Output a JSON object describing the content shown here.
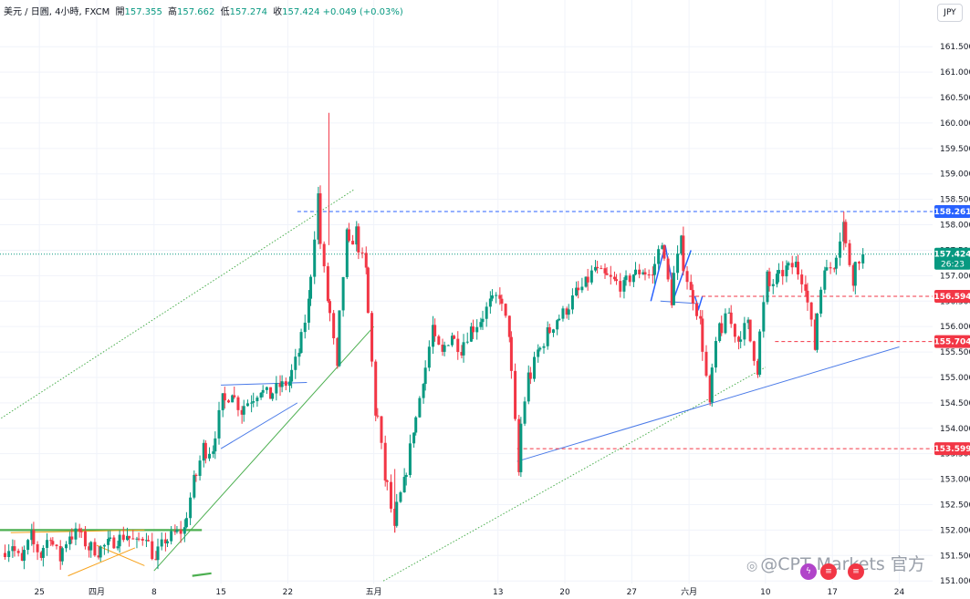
{
  "header": {
    "symbol": "美元 / 日圓, 4小時, FXCM",
    "open_label": "開",
    "open": "157.355",
    "high_label": "高",
    "high": "157.662",
    "low_label": "低",
    "low": "157.274",
    "close_label": "收",
    "close": "157.424",
    "change": "+0.049 (+0.03%)"
  },
  "currency_button": "JPY",
  "watermark": "@CPT Markets 官方",
  "colors": {
    "up": "#089981",
    "down": "#f23645",
    "price_line": "#089981",
    "resistance": "#2962ff",
    "trendline": "#4a7ae8",
    "channel": "#4caf50",
    "range": "#f7a21b",
    "support_red": "#f23645"
  },
  "chart_data": {
    "type": "candlestick",
    "interval": "4h",
    "ylim": [
      151.0,
      162.0
    ],
    "y_ticks": [
      "161.500",
      "161.000",
      "160.500",
      "160.000",
      "159.500",
      "159.000",
      "158.500",
      "158.000",
      "157.500",
      "157.000",
      "156.500",
      "156.000",
      "155.500",
      "155.000",
      "154.500",
      "154.000",
      "153.500",
      "153.000",
      "152.500",
      "152.000",
      "151.500",
      "151.000"
    ],
    "x_ticks": [
      {
        "label": "25",
        "pos": -6
      },
      {
        "label": "四月",
        "pos": 0
      },
      {
        "label": "8",
        "pos": 6
      },
      {
        "label": "15",
        "pos": 13
      },
      {
        "label": "22",
        "pos": 20
      },
      {
        "label": "五月",
        "pos": 29
      },
      {
        "label": "13",
        "pos": 42
      },
      {
        "label": "20",
        "pos": 49
      },
      {
        "label": "27",
        "pos": 56
      },
      {
        "label": "六月",
        "pos": 62
      },
      {
        "label": "10",
        "pos": 70
      },
      {
        "label": "17",
        "pos": 77
      },
      {
        "label": "24",
        "pos": 84
      }
    ],
    "current_price": {
      "value": "157.424",
      "countdown": "26:23"
    },
    "levels": [
      {
        "value": "158.261",
        "style": "dashed",
        "color": "#2962ff",
        "from_pos": 21
      },
      {
        "value": "156.594",
        "style": "dashed",
        "color": "#f23645",
        "from_pos": 62
      },
      {
        "value": "155.704",
        "style": "dashed",
        "color": "#f23645",
        "from_pos": 71
      },
      {
        "value": "153.599",
        "style": "dashed",
        "color": "#f23645",
        "from_pos": 44
      }
    ],
    "anchors": [
      [
        -10.0,
        151.55
      ],
      [
        -9.0,
        151.7
      ],
      [
        -8.0,
        151.4
      ],
      [
        -7.0,
        151.8
      ],
      [
        -6.0,
        151.55
      ],
      [
        -5.0,
        151.85
      ],
      [
        -4.0,
        151.5
      ],
      [
        -3.0,
        151.85
      ],
      [
        -2.0,
        151.95
      ],
      [
        -1.0,
        151.7
      ],
      [
        0.0,
        151.6
      ],
      [
        1.0,
        151.7
      ],
      [
        2.0,
        151.8
      ],
      [
        3.0,
        151.9
      ],
      [
        4.0,
        151.75
      ],
      [
        5.0,
        151.9
      ],
      [
        6.0,
        151.45
      ],
      [
        7.0,
        151.75
      ],
      [
        8.0,
        151.9
      ],
      [
        9.0,
        152.0
      ],
      [
        10.0,
        152.8
      ],
      [
        11.0,
        153.5
      ],
      [
        12.0,
        153.6
      ],
      [
        13.0,
        154.4
      ],
      [
        14.0,
        154.7
      ],
      [
        15.0,
        154.4
      ],
      [
        16.0,
        154.55
      ],
      [
        17.0,
        154.75
      ],
      [
        18.0,
        154.65
      ],
      [
        19.0,
        154.8
      ],
      [
        20.0,
        154.9
      ],
      [
        21.0,
        155.4
      ],
      [
        22.0,
        156.3
      ],
      [
        23.0,
        158.2
      ],
      [
        24.0,
        156.8
      ],
      [
        25.0,
        155.4
      ],
      [
        26.0,
        157.4
      ],
      [
        27.0,
        157.8
      ],
      [
        28.0,
        157.2
      ],
      [
        29.0,
        154.8
      ],
      [
        30.0,
        153.3
      ],
      [
        31.0,
        152.2
      ],
      [
        32.0,
        152.8
      ],
      [
        33.0,
        153.8
      ],
      [
        34.0,
        154.8
      ],
      [
        35.0,
        155.8
      ],
      [
        36.0,
        155.5
      ],
      [
        37.0,
        155.8
      ],
      [
        38.0,
        155.6
      ],
      [
        39.0,
        155.9
      ],
      [
        40.0,
        156.1
      ],
      [
        41.0,
        156.4
      ],
      [
        42.0,
        156.6
      ],
      [
        43.0,
        156.0
      ],
      [
        44.0,
        153.6
      ],
      [
        45.0,
        154.8
      ],
      [
        46.0,
        155.4
      ],
      [
        47.0,
        155.8
      ],
      [
        48.0,
        156.1
      ],
      [
        49.0,
        156.3
      ],
      [
        50.0,
        156.6
      ],
      [
        51.0,
        156.8
      ],
      [
        52.0,
        157.1
      ],
      [
        53.0,
        157.0
      ],
      [
        54.0,
        156.9
      ],
      [
        55.0,
        156.8
      ],
      [
        56.0,
        157.0
      ],
      [
        57.0,
        157.1
      ],
      [
        58.0,
        157.0
      ],
      [
        59.0,
        157.6
      ],
      [
        60.0,
        156.7
      ],
      [
        61.0,
        157.5
      ],
      [
        62.0,
        156.8
      ],
      [
        63.0,
        156.2
      ],
      [
        64.0,
        154.7
      ],
      [
        65.0,
        155.8
      ],
      [
        66.0,
        156.2
      ],
      [
        67.0,
        155.8
      ],
      [
        68.0,
        156.0
      ],
      [
        69.0,
        155.3
      ],
      [
        70.0,
        156.7
      ],
      [
        71.0,
        156.9
      ],
      [
        72.0,
        157.1
      ],
      [
        73.0,
        157.2
      ],
      [
        74.0,
        156.9
      ],
      [
        75.0,
        155.8
      ],
      [
        76.0,
        157.0
      ],
      [
        77.0,
        157.2
      ],
      [
        78.0,
        157.9
      ],
      [
        79.0,
        157.1
      ],
      [
        80.0,
        157.42
      ]
    ]
  },
  "drawings": [
    {
      "name": "channel-upper-dotted",
      "color": "#4caf50",
      "style": "dotted",
      "p1": [
        -10,
        154.2
      ],
      "p2": [
        27,
        158.7
      ]
    },
    {
      "name": "channel-lower-solid",
      "color": "#4caf50",
      "style": "solid",
      "p1": [
        6,
        151.2
      ],
      "p2": [
        29,
        156.0
      ]
    },
    {
      "name": "rising-support-dotted",
      "color": "#4caf50",
      "style": "dotted",
      "p1": [
        30,
        151.0
      ],
      "p2": [
        70,
        155.2
      ]
    },
    {
      "name": "trendline-blue",
      "color": "#4a7ae8",
      "style": "solid",
      "p1": [
        44,
        153.35
      ],
      "p2": [
        84,
        155.6
      ]
    },
    {
      "name": "neckline-blue",
      "color": "#4a7ae8",
      "style": "solid",
      "p1": [
        59,
        156.5
      ],
      "p2": [
        63,
        156.45
      ]
    },
    {
      "name": "flag-top-blue",
      "color": "#4a7ae8",
      "style": "solid",
      "p1": [
        13,
        154.85
      ],
      "p2": [
        22,
        154.9
      ]
    },
    {
      "name": "flag-bottom-blue",
      "color": "#4a7ae8",
      "style": "solid",
      "p1": [
        13,
        153.6
      ],
      "p2": [
        21,
        154.5
      ]
    },
    {
      "name": "range-top-green",
      "color": "#4caf50",
      "style": "solid",
      "p1": [
        -11,
        152.0
      ],
      "p2": [
        11,
        152.0
      ]
    },
    {
      "name": "range-orange-top",
      "color": "#f7a21b",
      "style": "solid",
      "p1": [
        -9,
        151.95
      ],
      "p2": [
        5,
        152.0
      ]
    },
    {
      "name": "range-orange-diag1",
      "color": "#f7a21b",
      "style": "solid",
      "p1": [
        -3,
        151.1
      ],
      "p2": [
        4,
        151.65
      ]
    },
    {
      "name": "range-orange-diag2",
      "color": "#f7a21b",
      "style": "solid",
      "p1": [
        0,
        151.7
      ],
      "p2": [
        5,
        151.3
      ]
    },
    {
      "name": "range-bottom-green",
      "color": "#4caf50",
      "style": "solid",
      "p1": [
        10,
        151.1
      ],
      "p2": [
        12,
        151.15
      ]
    },
    {
      "name": "double-top-blue",
      "color": "#2962ff",
      "style": "polyline",
      "points": [
        [
          58,
          156.5
        ],
        [
          59.5,
          157.6
        ],
        [
          60.5,
          156.6
        ],
        [
          62.2,
          157.5
        ]
      ]
    },
    {
      "name": "double-top-check",
      "color": "#2962ff",
      "style": "polyline",
      "points": [
        [
          62.6,
          156.6
        ],
        [
          63.0,
          156.35
        ],
        [
          63.4,
          156.6
        ]
      ]
    }
  ]
}
